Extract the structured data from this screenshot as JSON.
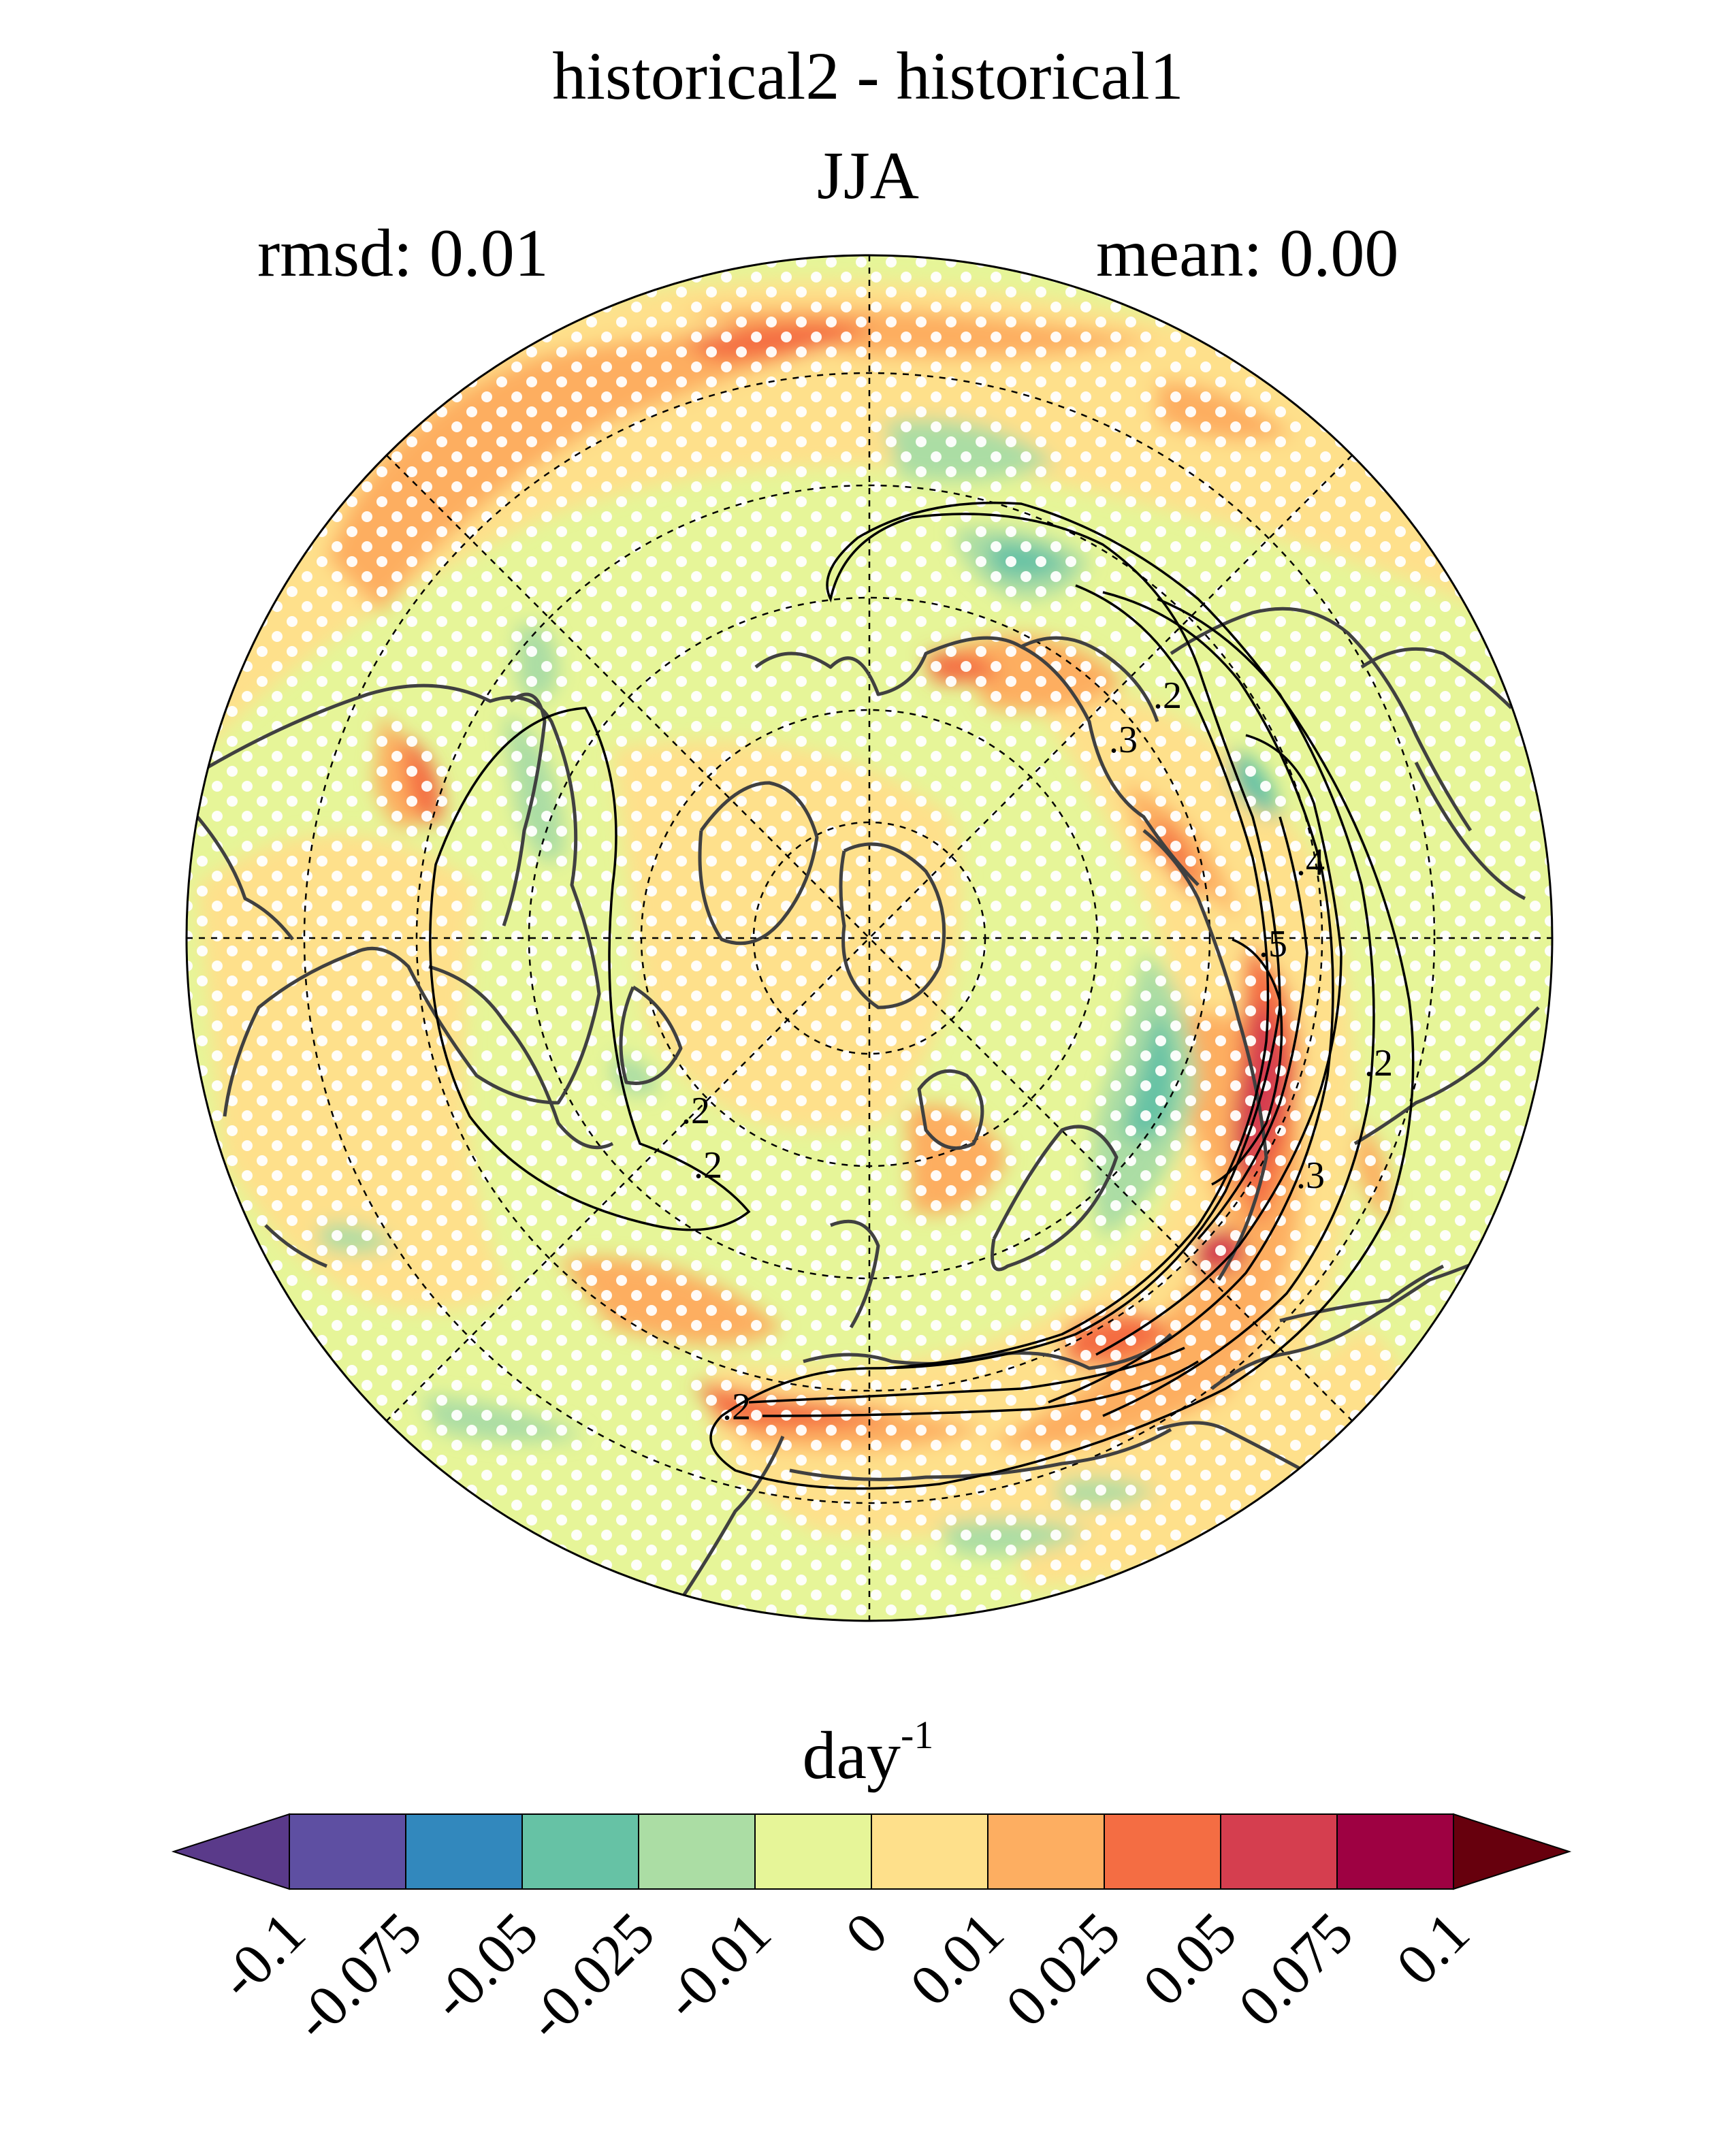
{
  "figure": {
    "title_line1": "historical2 - historical1",
    "title_line2": "JJA",
    "rmsd_label": "rmsd: 0.01",
    "mean_label": "mean: 0.00",
    "units_base": "day",
    "units_exponent": "-1"
  },
  "contour_labels": [
    ".2",
    ".3",
    ".2",
    ".4",
    ".5",
    ".2",
    ".3",
    ".2",
    ".2"
  ],
  "colorbar": {
    "ticks": [
      "-0.1",
      "-0.075",
      "-0.05",
      "-0.025",
      "-0.01",
      "0",
      "0.01",
      "0.025",
      "0.05",
      "0.075",
      "0.1"
    ],
    "colors": [
      "#5e4fa2",
      "#3288bd",
      "#66c2a5",
      "#abdda4",
      "#e6f598",
      "#fee08b",
      "#fdae61",
      "#f46d43",
      "#d53e4f",
      "#9e0142"
    ],
    "under_color": "#5a3a8a",
    "over_color": "#67000d",
    "extend": "both"
  },
  "map": {
    "projection": "north polar stereographic",
    "season": "JJA",
    "stippling": "white dots"
  }
}
